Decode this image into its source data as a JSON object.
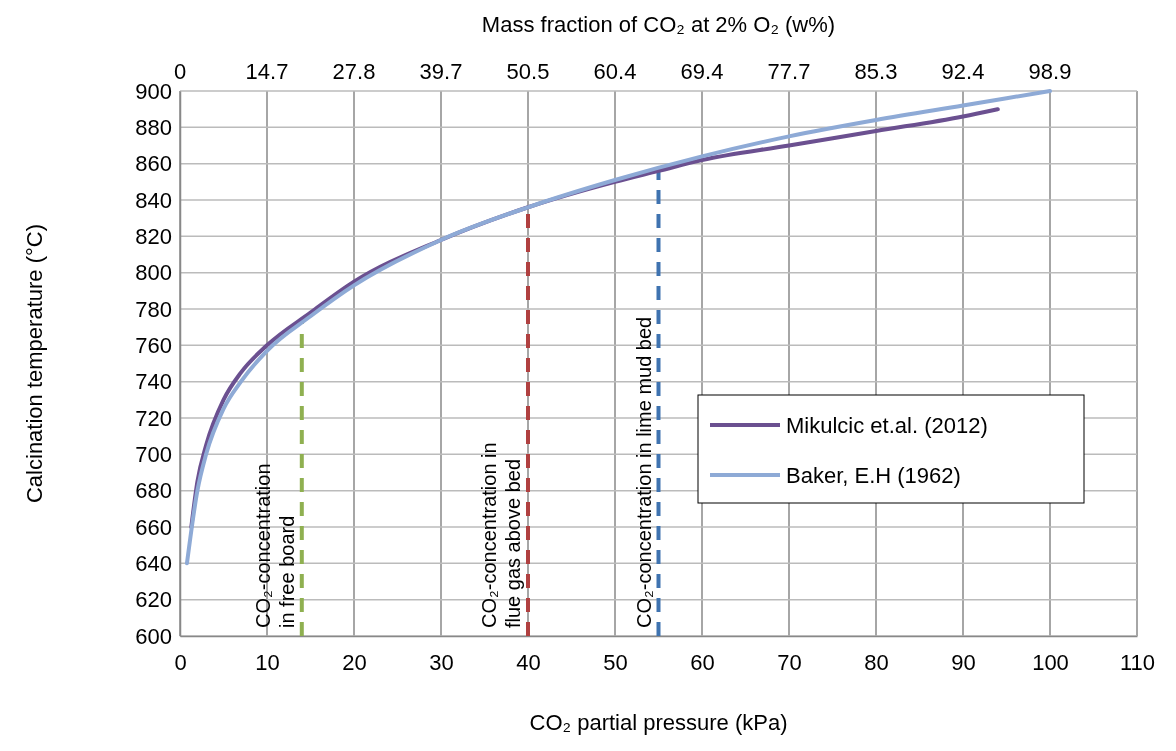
{
  "chart_data": {
    "type": "line",
    "xlabel": "CO₂ partial pressure (kPa)",
    "ylabel": "Calcination temperature (°C)",
    "x2label": "Mass fraction of CO₂ at 2% O₂ (w%)",
    "xlim": [
      0,
      110
    ],
    "xticks": [
      0,
      10,
      20,
      30,
      40,
      50,
      60,
      70,
      80,
      90,
      100,
      110
    ],
    "annotations": [
      "0",
      "14.7",
      "27.8",
      "39.7",
      "50.5",
      "60.4",
      "69.4",
      "77.7",
      "85.3",
      "92.4",
      "98.9"
    ],
    "ylim": [
      600,
      900
    ],
    "yticks": [
      600,
      620,
      640,
      660,
      680,
      700,
      720,
      740,
      760,
      780,
      800,
      820,
      840,
      860,
      880,
      900
    ],
    "grid": true,
    "legend": "right",
    "marker": "none",
    "line_style": "solid",
    "series": [
      {
        "name": "Mikulcic et.al. (2012)",
        "color": "#6b5090",
        "x": [
          1.3,
          2,
          3,
          5,
          7,
          10,
          15,
          20,
          30,
          40,
          50,
          55,
          60,
          70,
          80,
          90,
          94
        ],
        "values": [
          660,
          685,
          705,
          730,
          745,
          760,
          778,
          795,
          818,
          836,
          850,
          856,
          862,
          870,
          878,
          886,
          890
        ]
      },
      {
        "name": "Baker, E.H (1962)",
        "color": "#8eaad6",
        "x": [
          0.8,
          2,
          3,
          5,
          7,
          10,
          15,
          20,
          30,
          40,
          50,
          60,
          70,
          80,
          90,
          100
        ],
        "values": [
          640,
          680,
          700,
          725,
          740,
          757,
          776,
          793,
          818,
          836,
          851,
          864,
          875,
          884,
          892,
          900
        ]
      }
    ],
    "ref_lines": [
      {
        "axis": "x",
        "value": 14,
        "label": "CO₂-concentration\nin free board",
        "color": "#8fb050",
        "line_style": "dashed"
      },
      {
        "axis": "x",
        "value": 40,
        "label": "CO₂-concentration in\nflue gas above bed",
        "color": "#b04040",
        "line_style": "dashed"
      },
      {
        "axis": "x",
        "value": 55,
        "label": "CO₂-concentration in lime mud bed",
        "color": "#3f73b0",
        "line_style": "dashed"
      }
    ]
  }
}
